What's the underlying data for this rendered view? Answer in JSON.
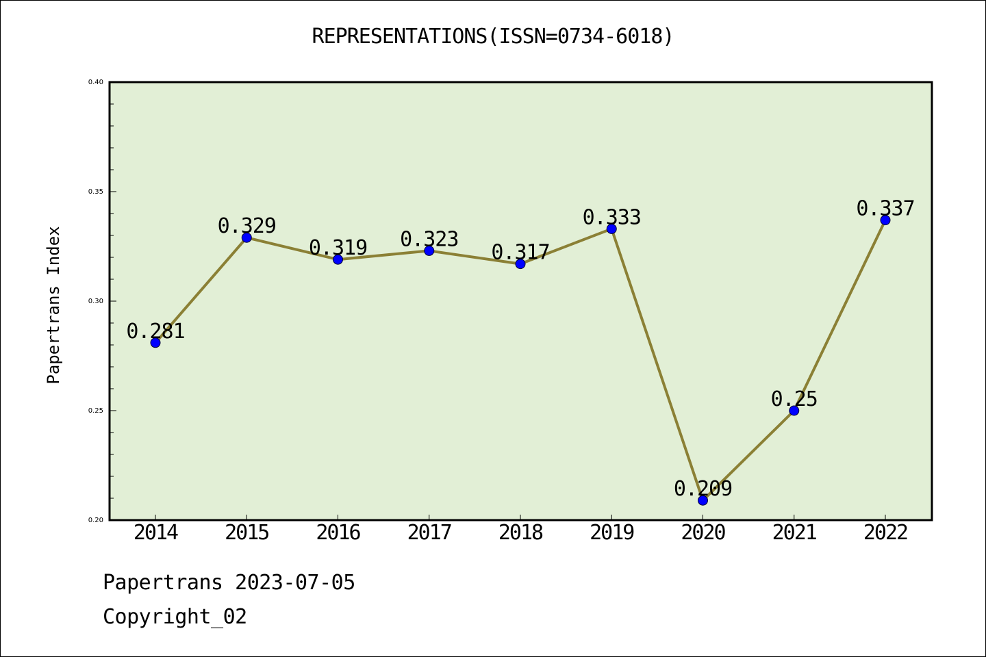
{
  "chart_data": {
    "type": "line",
    "title": "REPRESENTATIONS(ISSN=0734-6018)",
    "ylabel": "Papertrans Index",
    "xlabel": "",
    "categories": [
      "2014",
      "2015",
      "2016",
      "2017",
      "2018",
      "2019",
      "2020",
      "2021",
      "2022"
    ],
    "series": [
      {
        "values": [
          0.281,
          0.329,
          0.319,
          0.323,
          0.317,
          0.333,
          0.209,
          0.25,
          0.337
        ],
        "labels": [
          "0.281",
          "0.329",
          "0.319",
          "0.323",
          "0.317",
          "0.333",
          "0.209",
          "0.25",
          "0.337"
        ],
        "line_color": "#8b8035",
        "marker_color": "#0000ff"
      }
    ],
    "ylim": [
      0.2,
      0.4
    ],
    "yticks": [
      "0.20",
      "0.25",
      "0.30",
      "0.35",
      "0.40"
    ],
    "grid": false,
    "legend": "none",
    "plot_background": "#e2efd6"
  },
  "footer": {
    "date_line": "Papertrans 2023-07-05",
    "copyright": "Copyright_02"
  }
}
